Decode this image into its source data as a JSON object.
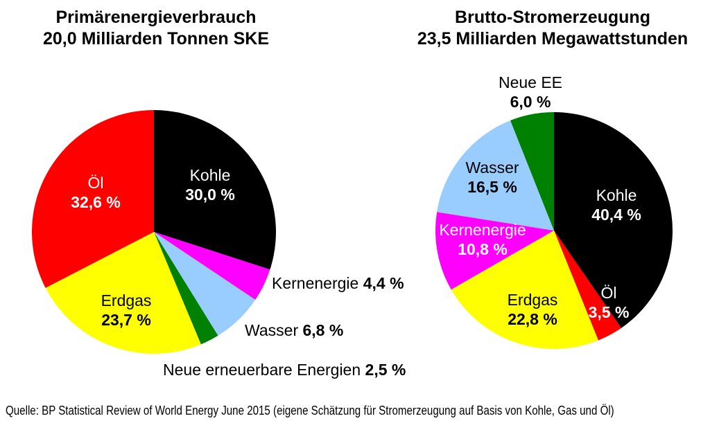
{
  "background_color": "#ffffff",
  "chart_data": [
    {
      "type": "pie",
      "title_line1": "Primärenergieverbrauch",
      "title_line2": "20,0 Milliarden Tonnen SKE",
      "direction": "clockwise",
      "start_angle_deg": 0,
      "unit": "%",
      "slices": [
        {
          "id": "kohle",
          "name": "Kohle",
          "value": 30.0,
          "pct_label": "30,0 %",
          "color": "#000000",
          "label_color": "#ffffff",
          "label_placement": "inside"
        },
        {
          "id": "kernenergie",
          "name": "Kernenergie",
          "value": 4.4,
          "pct_label": "4,4 %",
          "color": "#ff00ff",
          "label_color": "#000000",
          "label_placement": "outside"
        },
        {
          "id": "wasser",
          "name": "Wasser",
          "value": 6.8,
          "pct_label": "6,8 %",
          "color": "#99ccff",
          "label_color": "#000000",
          "label_placement": "outside"
        },
        {
          "id": "neue-ee",
          "name": "Neue erneuerbare Energien",
          "value": 2.5,
          "pct_label": "2,5 %",
          "color": "#008000",
          "label_color": "#000000",
          "label_placement": "outside"
        },
        {
          "id": "erdgas",
          "name": "Erdgas",
          "value": 23.7,
          "pct_label": "23,7 %",
          "color": "#ffff00",
          "label_color": "#000000",
          "label_placement": "inside"
        },
        {
          "id": "oel",
          "name": "Öl",
          "value": 32.6,
          "pct_label": "32,6 %",
          "color": "#ff0000",
          "label_color": "#ffffff",
          "label_placement": "inside"
        }
      ]
    },
    {
      "type": "pie",
      "title_line1": "Brutto-Stromerzeugung",
      "title_line2": "23,5 Milliarden Megawattstunden",
      "direction": "clockwise",
      "start_angle_deg": 0,
      "unit": "%",
      "slices": [
        {
          "id": "kohle",
          "name": "Kohle",
          "value": 40.4,
          "pct_label": "40,4 %",
          "color": "#000000",
          "label_color": "#ffffff",
          "label_placement": "inside"
        },
        {
          "id": "oel",
          "name": "Öl",
          "value": 3.5,
          "pct_label": "3,5 %",
          "color": "#ff0000",
          "label_color": "#ffffff",
          "label_placement": "inside"
        },
        {
          "id": "erdgas",
          "name": "Erdgas",
          "value": 22.8,
          "pct_label": "22,8 %",
          "color": "#ffff00",
          "label_color": "#000000",
          "label_placement": "inside"
        },
        {
          "id": "kernenergie",
          "name": "Kernenergie",
          "value": 10.8,
          "pct_label": "10,8 %",
          "color": "#ff00ff",
          "label_color": "#ffffff",
          "label_placement": "inside"
        },
        {
          "id": "wasser",
          "name": "Wasser",
          "value": 16.5,
          "pct_label": "16,5 %",
          "color": "#99ccff",
          "label_color": "#000000",
          "label_placement": "inside"
        },
        {
          "id": "neue-ee",
          "name": "Neue EE",
          "value": 6.0,
          "pct_label": "6,0 %",
          "color": "#008000",
          "label_color": "#000000",
          "label_placement": "outside"
        }
      ]
    }
  ],
  "source": "Quelle: BP Statistical Review of World Energy June 2015 (eigene Schätzung für Stromerzeugung auf Basis von Kohle, Gas und Öl)"
}
